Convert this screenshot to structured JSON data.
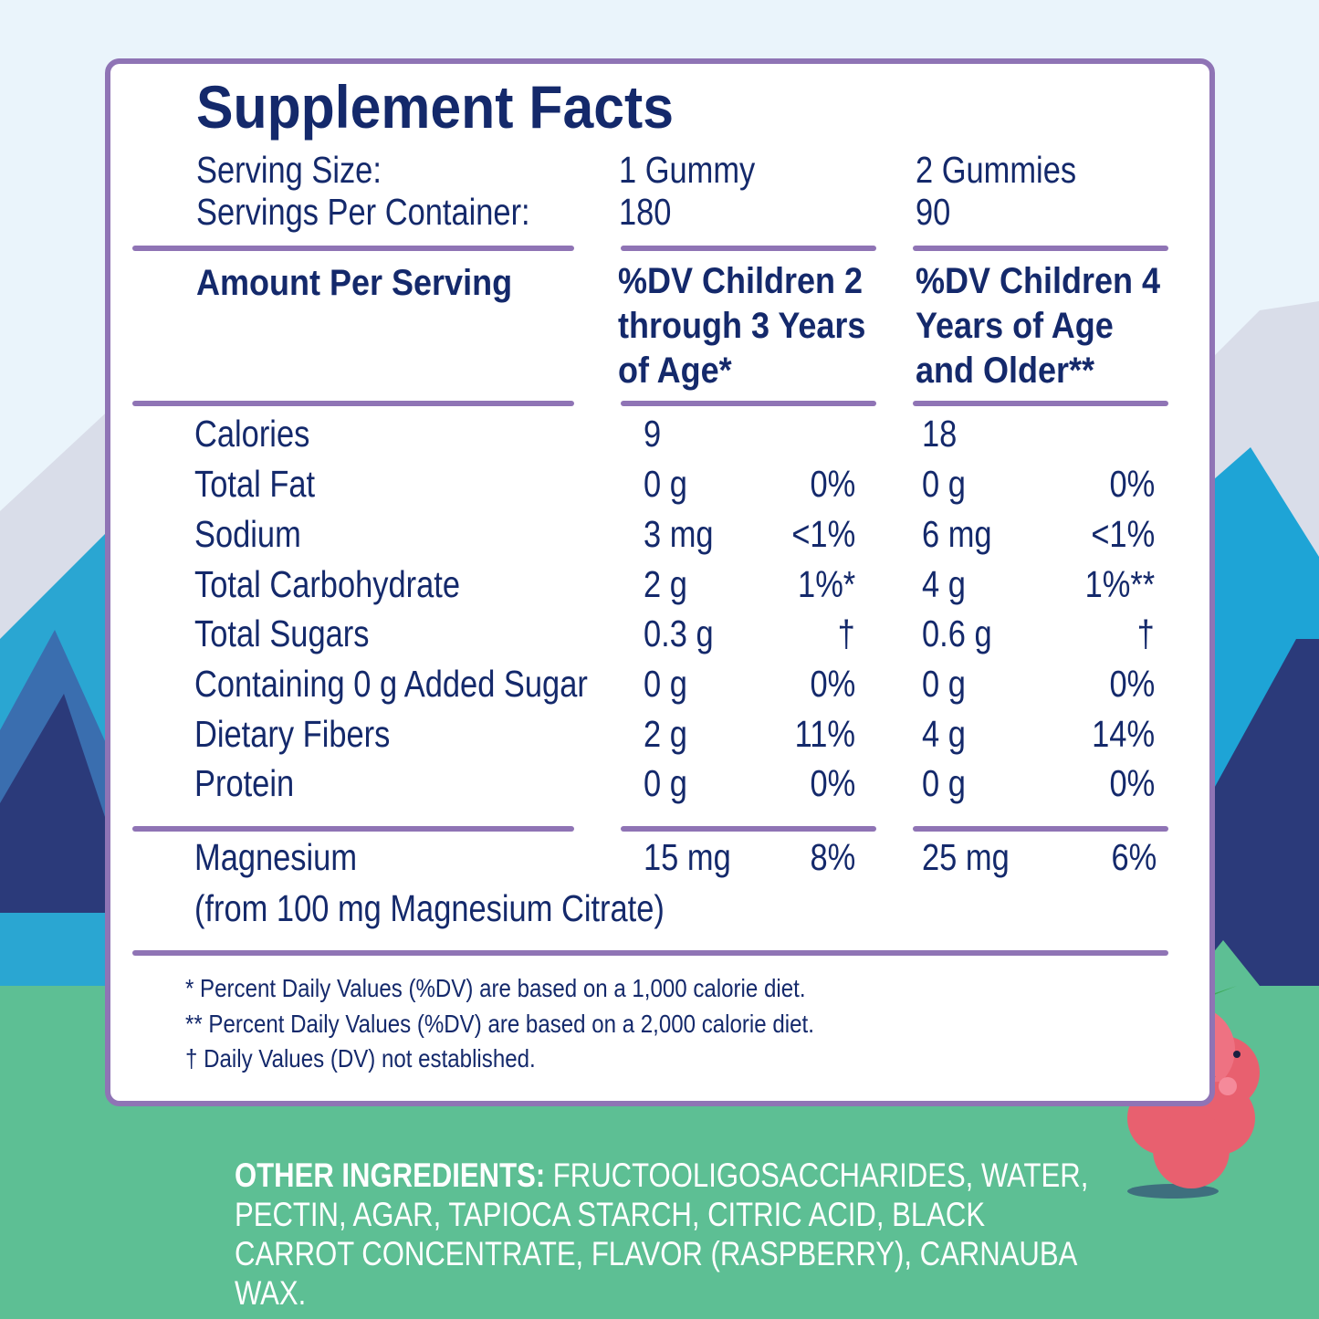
{
  "title": "Supplement Facts",
  "serving_size": {
    "label": "Serving Size:",
    "values": [
      "1 Gummy",
      "2 Gummies"
    ]
  },
  "servings_per_container": {
    "label": "Servings Per Container:",
    "values": [
      "180",
      "90"
    ]
  },
  "headers": [
    "Amount Per Serving",
    "%DV Children 2 through 3 Years of Age*",
    "%DV Children 4 Years of Age and Older**"
  ],
  "rows": [
    {
      "nutrient": "Calories",
      "amount_1": "9",
      "amount_2": "18"
    },
    {
      "nutrient": "Total Fat",
      "amount_1": "0 g",
      "dv_1": "0%",
      "amount_2": "0 g",
      "dv_2": "0%"
    },
    {
      "nutrient": "Sodium",
      "amount_1": "3 mg",
      "dv_1": "<1%",
      "amount_2": "6 mg",
      "dv_2": "<1%"
    },
    {
      "nutrient": "Total Carbohydrate",
      "amount_1": "2 g",
      "dv_1": "1%*",
      "amount_2": "4 g",
      "dv_2": "1%**"
    },
    {
      "nutrient": "Total Sugars",
      "amount_1": "0.3 g",
      "dv_1": "†",
      "amount_2": "0.6 g",
      "dv_2": "†"
    },
    {
      "nutrient": "Containing 0 g Added Sugar",
      "amount_1": "0 g",
      "dv_1": "0%",
      "amount_2": "0 g",
      "dv_2": "0%"
    },
    {
      "nutrient": "Dietary Fibers",
      "amount_1": "2 g",
      "dv_1": "11%",
      "amount_2": "4 g",
      "dv_2": "14%"
    },
    {
      "nutrient": "Protein",
      "amount_1": "0 g",
      "dv_1": "0%",
      "amount_2": "0 g",
      "dv_2": "0%"
    }
  ],
  "magnesium": {
    "nutrient": "Magnesium",
    "amount_1": "15 mg",
    "dv_1": "8%",
    "amount_2": "25 mg",
    "dv_2": "6%",
    "source": "(from 100 mg Magnesium Citrate)"
  },
  "footnotes": [
    "* Percent Daily Values (%DV) are based on a 1,000 calorie diet.",
    "** Percent Daily Values (%DV) are based on a 2,000 calorie diet.",
    "† Daily Values (DV) not established."
  ],
  "other_ingredients": {
    "label": "OTHER INGREDIENTS:",
    "text": "FRUCTOOLIGOSACCHARIDES, WATER, PECTIN, AGAR, TAPIOCA STARCH, CITRIC ACID, BLACK CARROT CONCENTRATE, FLAVOR (RASPBERRY), CARNAUBA WAX."
  }
}
